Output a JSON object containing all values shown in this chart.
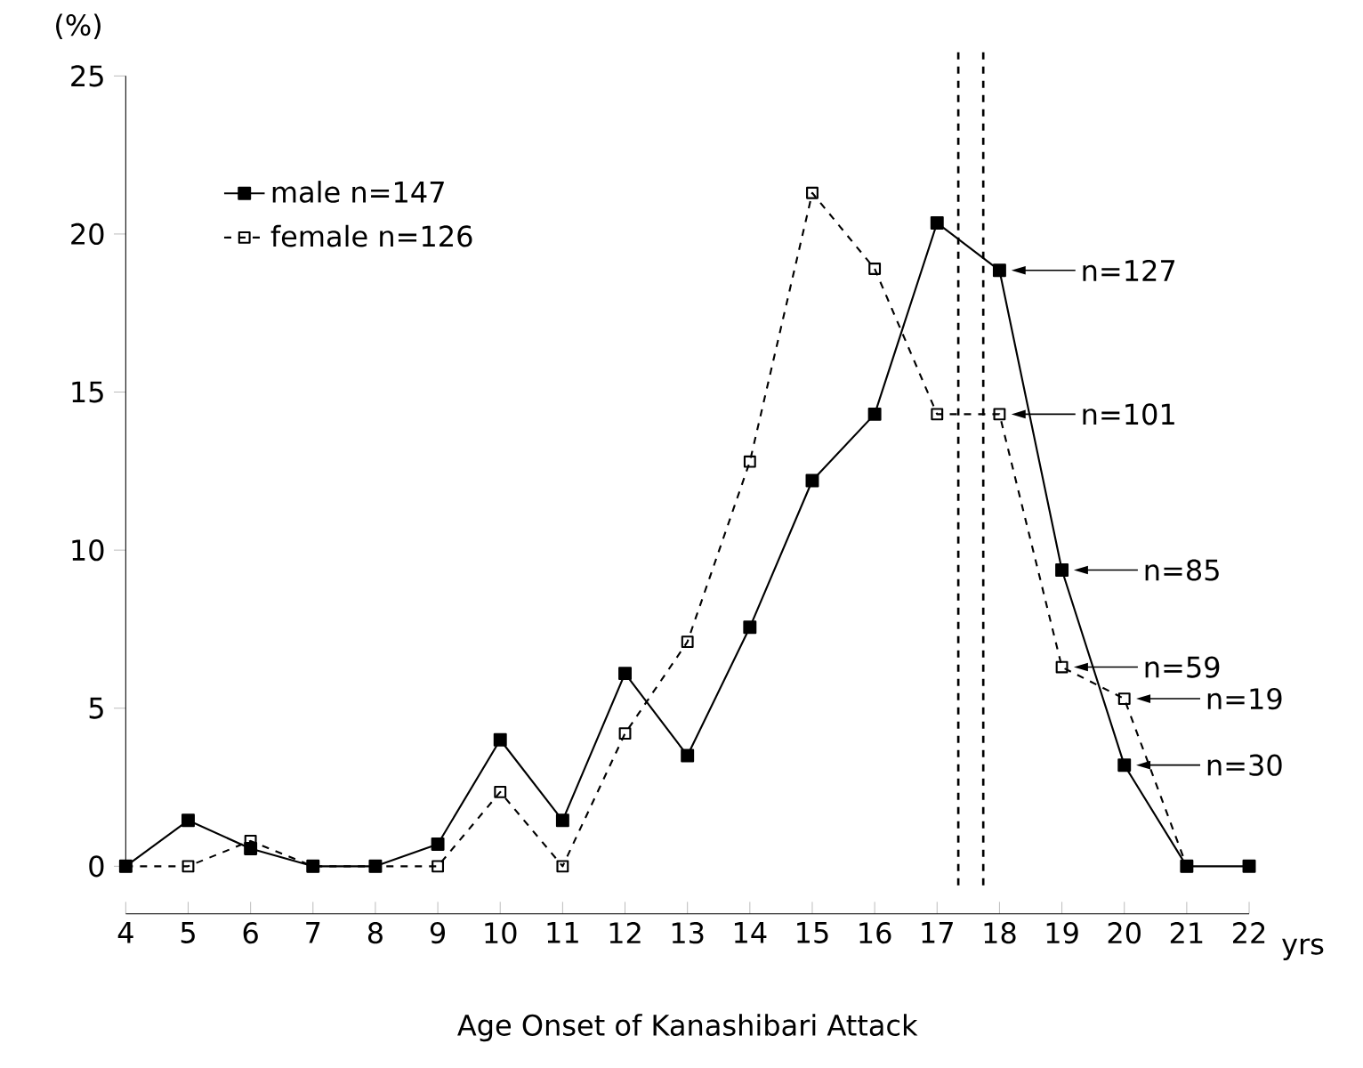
{
  "chart_data": {
    "type": "line",
    "xlabel": "Age Onset of Kanashibari Attack",
    "ylabel": "(%)",
    "x": [
      4,
      5,
      6,
      7,
      8,
      9,
      10,
      11,
      12,
      13,
      14,
      15,
      16,
      17,
      18,
      19,
      20,
      21,
      22
    ],
    "series": [
      {
        "name": "male n=147",
        "color": "#000000",
        "line_style": "solid",
        "values": [
          0,
          1.45,
          0.56,
          0,
          0,
          0.7,
          4.0,
          1.45,
          6.1,
          3.5,
          7.56,
          12.2,
          14.3,
          20.35,
          18.85,
          9.37,
          3.2,
          0,
          0
        ]
      },
      {
        "name": "female n=126",
        "color": "#000000",
        "line_style": "dashed",
        "values": [
          0,
          0,
          0.8,
          0,
          0,
          0,
          2.35,
          0,
          4.2,
          7.1,
          12.8,
          21.3,
          18.9,
          14.3,
          14.3,
          6.3,
          5.3,
          0,
          null
        ]
      }
    ],
    "xlim": [
      4,
      22
    ],
    "ylim": [
      0,
      25
    ],
    "xticks": [
      4,
      5,
      6,
      7,
      8,
      9,
      10,
      11,
      12,
      13,
      14,
      15,
      16,
      17,
      18,
      19,
      20,
      21,
      22
    ],
    "yticks": [
      0,
      5,
      10,
      15,
      20,
      25
    ],
    "marker": "square",
    "legend": "top left",
    "grid": false,
    "ref_lines": [
      {
        "axis": "x",
        "value": 17.34,
        "color": "#000000",
        "line_style": "dashed"
      },
      {
        "axis": "x",
        "value": 17.74,
        "color": "#000000",
        "line_style": "dashed"
      }
    ],
    "annotations": [
      {
        "text": "n=127",
        "x": 18,
        "y": 18.85
      },
      {
        "text": "n=101",
        "x": 18,
        "y": 14.3
      },
      {
        "text": "n=85",
        "x": 19,
        "y": 9.37
      },
      {
        "text": "n=59",
        "x": 19,
        "y": 6.3
      },
      {
        "text": "n=19",
        "x": 20,
        "y": 5.3
      },
      {
        "text": "n=30",
        "x": 20,
        "y": 3.2
      },
      "yrs"
    ]
  }
}
